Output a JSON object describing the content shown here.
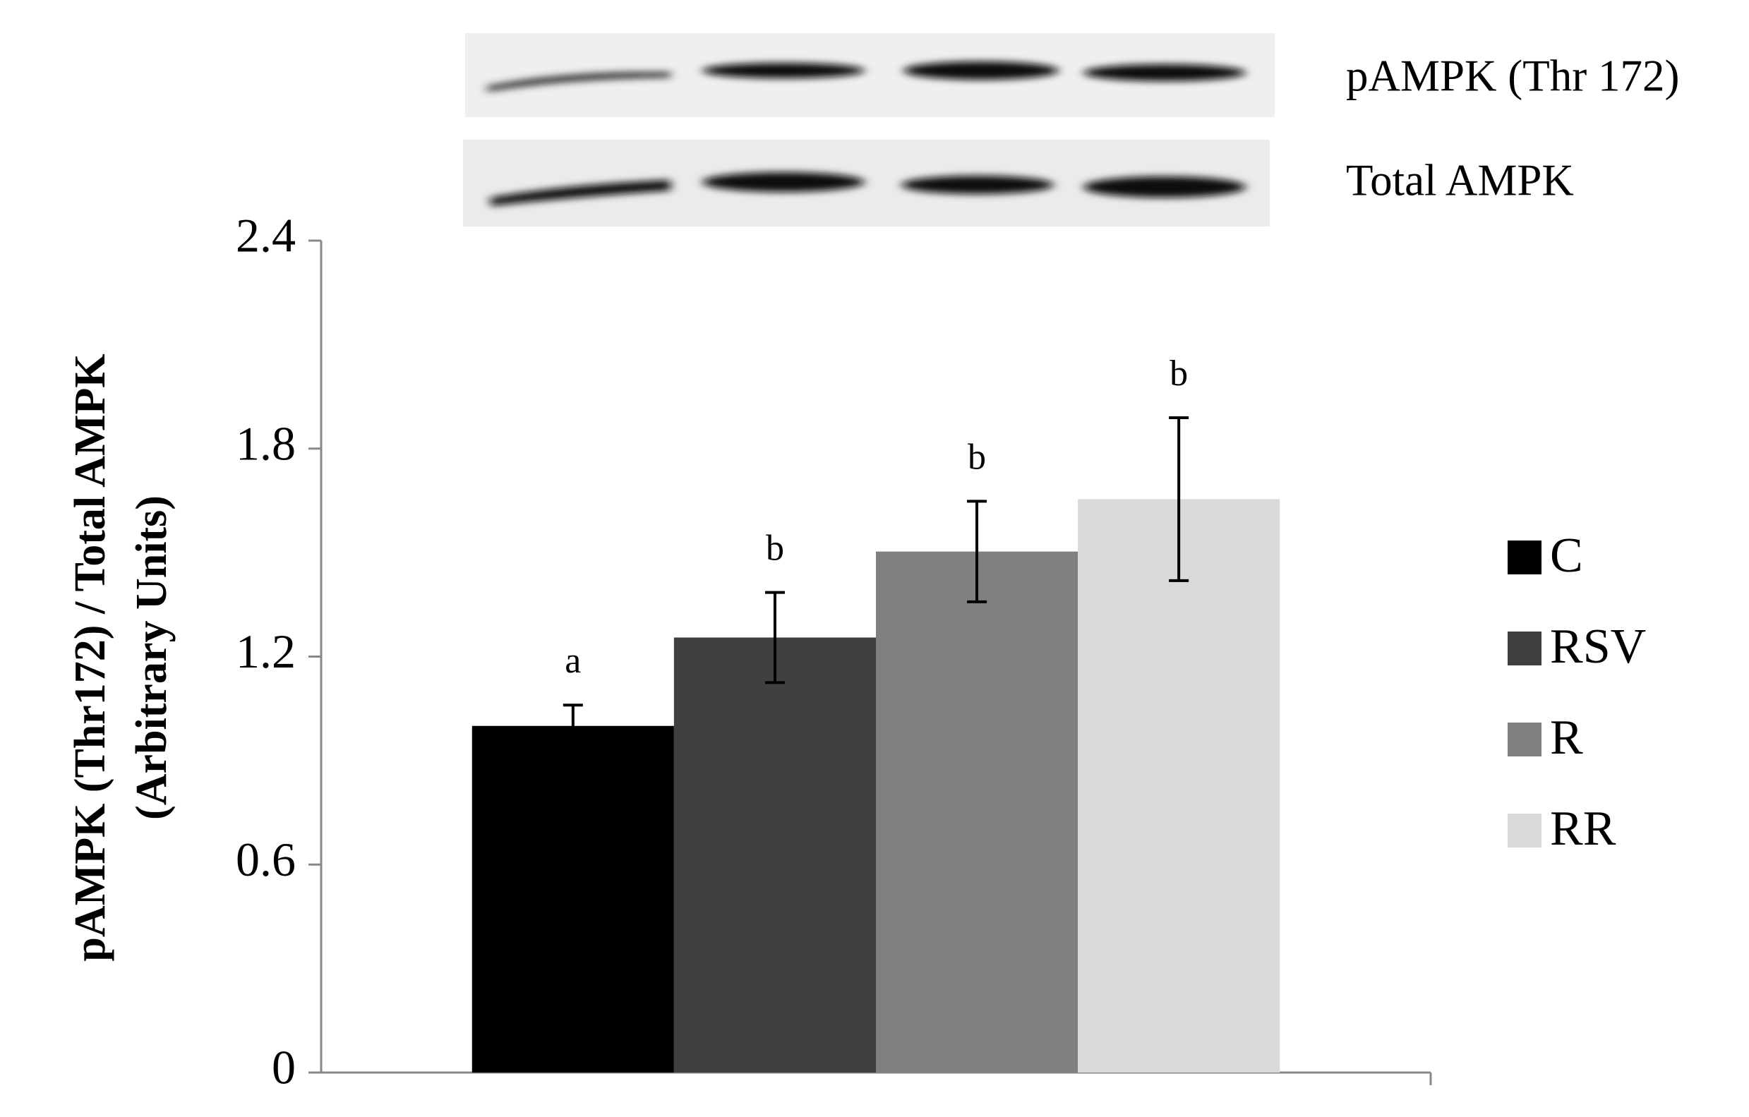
{
  "chart_data": {
    "type": "bar",
    "categories": [
      null
    ],
    "series": [
      {
        "name": "C",
        "color": "#000000",
        "values": [
          1.0
        ],
        "errors": [
          0.06
        ]
      },
      {
        "name": "RSV",
        "color": "#404040",
        "values": [
          1.255
        ],
        "errors": [
          0.13
        ]
      },
      {
        "name": "R",
        "color": "#808080",
        "values": [
          1.503
        ],
        "errors": [
          0.145
        ]
      },
      {
        "name": "RR",
        "color": "#d9d9d9",
        "values": [
          1.654
        ],
        "errors": [
          0.235
        ]
      }
    ],
    "annotations": [
      "a",
      "b",
      "b",
      "b"
    ],
    "y_label": [
      "pAMPK (Thr172) / Total AMPK",
      "(Arbitrary Units)"
    ],
    "blot_labels": [
      "pAMPK (Thr 172)",
      "Total AMPK"
    ],
    "ylim": [
      0,
      2.4
    ],
    "yticks": [
      0,
      0.6,
      1.2,
      1.8,
      2.4
    ],
    "legend": "right"
  }
}
